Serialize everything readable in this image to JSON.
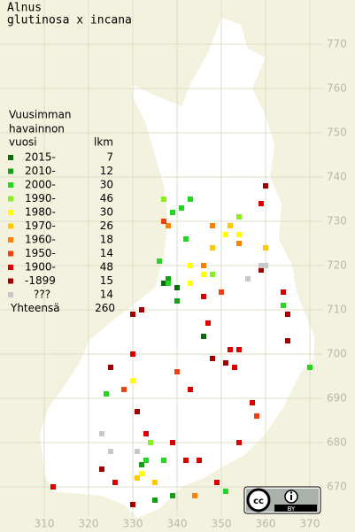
{
  "title": [
    "Alnus",
    "glutinosa x incana"
  ],
  "legend": {
    "header": [
      "Vuusimman",
      "havainnon",
      "vuosi"
    ],
    "count_header": "lkm",
    "rows": [
      {
        "label": "2015-",
        "count": 7,
        "color": "#0b6b0b",
        "points": [
          [
            340,
            715
          ],
          [
            337,
            716
          ],
          [
            346,
            704
          ]
        ]
      },
      {
        "label": "2010-",
        "count": 12,
        "color": "#169e16",
        "points": [
          [
            338,
            717
          ],
          [
            340,
            712
          ],
          [
            332,
            675
          ],
          [
            339,
            668
          ],
          [
            335,
            667
          ]
        ]
      },
      {
        "label": "2000-",
        "count": 30,
        "color": "#22d622",
        "points": [
          [
            341,
            733
          ],
          [
            343,
            735
          ],
          [
            339,
            732
          ],
          [
            342,
            726
          ],
          [
            338,
            716
          ],
          [
            337,
            676
          ],
          [
            333,
            676
          ],
          [
            370,
            697
          ],
          [
            351,
            669
          ],
          [
            324,
            691
          ],
          [
            364,
            711
          ],
          [
            336,
            721
          ]
        ]
      },
      {
        "label": "1990-",
        "count": 46,
        "color": "#88ee22",
        "points": [
          [
            337,
            735
          ],
          [
            354,
            731
          ],
          [
            334,
            680
          ],
          [
            348,
            718
          ]
        ]
      },
      {
        "label": "1980-",
        "count": 30,
        "color": "#ffff00",
        "points": [
          [
            343,
            720
          ],
          [
            346,
            718
          ],
          [
            330,
            694
          ],
          [
            354,
            727
          ],
          [
            332,
            673
          ],
          [
            351,
            727
          ],
          [
            343,
            716
          ]
        ]
      },
      {
        "label": "1970-",
        "count": 26,
        "color": "#ffc800",
        "points": [
          [
            352,
            729
          ],
          [
            348,
            724
          ],
          [
            331,
            672
          ],
          [
            335,
            671
          ],
          [
            360,
            724
          ]
        ]
      },
      {
        "label": "1960-",
        "count": 18,
        "color": "#ff8000",
        "points": [
          [
            348,
            729
          ],
          [
            354,
            725
          ],
          [
            346,
            720
          ],
          [
            338,
            729
          ],
          [
            344,
            668
          ]
        ]
      },
      {
        "label": "1950-",
        "count": 14,
        "color": "#f04010",
        "points": [
          [
            340,
            696
          ],
          [
            350,
            714
          ],
          [
            328,
            692
          ],
          [
            358,
            686
          ],
          [
            337,
            730
          ]
        ]
      },
      {
        "label": "1900-",
        "count": 48,
        "color": "#dd0000",
        "points": [
          [
            359,
            734
          ],
          [
            354,
            701
          ],
          [
            353,
            697
          ],
          [
            352,
            701
          ],
          [
            343,
            692
          ],
          [
            357,
            689
          ],
          [
            339,
            680
          ],
          [
            333,
            682
          ],
          [
            345,
            676
          ],
          [
            349,
            671
          ],
          [
            354,
            680
          ],
          [
            342,
            676
          ],
          [
            326,
            671
          ],
          [
            312,
            670
          ],
          [
            346,
            713
          ],
          [
            364,
            714
          ],
          [
            347,
            707
          ],
          [
            330,
            700
          ]
        ]
      },
      {
        "label": "-1899",
        "count": 15,
        "color": "#a00000",
        "points": [
          [
            330,
            709
          ],
          [
            332,
            710
          ],
          [
            365,
            709
          ],
          [
            365,
            703
          ],
          [
            360,
            738
          ],
          [
            359,
            719
          ],
          [
            325,
            697
          ],
          [
            331,
            687
          ],
          [
            323,
            674
          ],
          [
            330,
            666
          ],
          [
            351,
            698
          ],
          [
            348,
            699
          ]
        ]
      },
      {
        "label": "???",
        "count": 14,
        "color": "#c8c8c8",
        "points": [
          [
            359,
            720
          ],
          [
            360,
            720
          ],
          [
            356,
            717
          ],
          [
            323,
            682
          ],
          [
            325,
            678
          ],
          [
            331,
            678
          ]
        ]
      }
    ],
    "total_label": "Yhteensä",
    "total": 260
  },
  "xticks": [
    310,
    320,
    330,
    340,
    350,
    360,
    370
  ],
  "yticks": [
    670,
    680,
    690,
    700,
    710,
    720,
    730,
    740,
    750,
    760,
    770
  ],
  "license_badge": "BY"
}
